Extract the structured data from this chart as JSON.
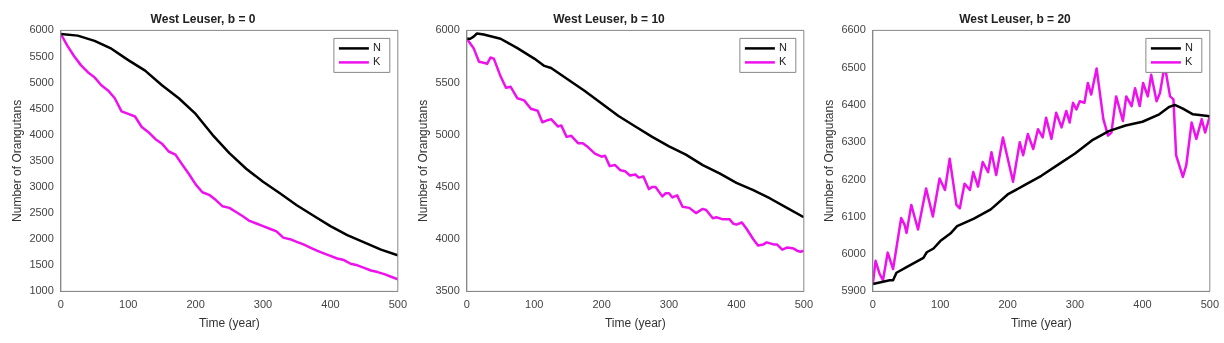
{
  "chart_data": [
    {
      "type": "line",
      "title": "West Leuser, b = 0",
      "xlabel": "Time (year)",
      "ylabel": "Number of Orangutans",
      "xlim": [
        0,
        500
      ],
      "xticks": [
        0,
        100,
        200,
        300,
        400,
        500
      ],
      "ylim": [
        1000,
        6000
      ],
      "yticks": [
        1000,
        1500,
        2000,
        2500,
        3000,
        3500,
        4000,
        4500,
        5000,
        5500,
        6000
      ],
      "grid": false,
      "legend": "top right",
      "series": [
        {
          "name": "N",
          "color": "#000000",
          "x": [
            0,
            25,
            50,
            75,
            100,
            125,
            150,
            175,
            200,
            225,
            250,
            275,
            300,
            325,
            350,
            375,
            400,
            425,
            450,
            475,
            500
          ],
          "values": [
            5930,
            5900,
            5800,
            5650,
            5430,
            5230,
            4950,
            4700,
            4400,
            4000,
            3650,
            3350,
            3100,
            2880,
            2650,
            2450,
            2250,
            2080,
            1940,
            1800,
            1690
          ]
        },
        {
          "name": "K",
          "color": "#ee11ee",
          "x": [
            0,
            10,
            20,
            30,
            40,
            50,
            60,
            70,
            80,
            90,
            100,
            110,
            120,
            130,
            140,
            150,
            160,
            170,
            180,
            190,
            200,
            210,
            220,
            230,
            240,
            250,
            260,
            270,
            280,
            290,
            300,
            310,
            320,
            330,
            340,
            350,
            360,
            370,
            380,
            390,
            400,
            410,
            420,
            430,
            440,
            450,
            460,
            470,
            480,
            490,
            500
          ],
          "values": [
            5930,
            5700,
            5500,
            5330,
            5200,
            5100,
            4950,
            4850,
            4700,
            4450,
            4400,
            4350,
            4150,
            4050,
            3920,
            3830,
            3680,
            3620,
            3430,
            3250,
            3050,
            2900,
            2850,
            2750,
            2630,
            2600,
            2520,
            2440,
            2350,
            2300,
            2250,
            2200,
            2150,
            2030,
            2000,
            1950,
            1900,
            1840,
            1780,
            1730,
            1680,
            1630,
            1600,
            1530,
            1500,
            1450,
            1400,
            1370,
            1330,
            1280,
            1230
          ]
        }
      ]
    },
    {
      "type": "line",
      "title": "West Leuser, b = 10",
      "xlabel": "Time (year)",
      "ylabel": "Number of Orangutans",
      "xlim": [
        0,
        500
      ],
      "xticks": [
        0,
        100,
        200,
        300,
        400,
        500
      ],
      "ylim": [
        3500,
        6000
      ],
      "yticks": [
        3500,
        4000,
        4500,
        5000,
        5500,
        6000
      ],
      "grid": false,
      "legend": "top right",
      "series": [
        {
          "name": "N",
          "color": "#000000",
          "x": [
            0,
            5,
            10,
            15,
            25,
            50,
            75,
            100,
            115,
            125,
            150,
            175,
            200,
            225,
            250,
            275,
            300,
            325,
            350,
            375,
            400,
            425,
            450,
            475,
            500
          ],
          "values": [
            5920,
            5920,
            5940,
            5970,
            5960,
            5920,
            5830,
            5730,
            5660,
            5640,
            5530,
            5420,
            5300,
            5180,
            5080,
            4980,
            4890,
            4810,
            4710,
            4630,
            4540,
            4470,
            4390,
            4300,
            4210
          ]
        },
        {
          "name": "K",
          "color": "#ee11ee",
          "x": [
            0,
            10,
            18,
            25,
            30,
            35,
            40,
            50,
            58,
            65,
            75,
            85,
            95,
            105,
            112,
            120,
            125,
            135,
            140,
            148,
            155,
            165,
            172,
            180,
            190,
            200,
            205,
            212,
            220,
            228,
            235,
            242,
            250,
            255,
            262,
            270,
            275,
            280,
            290,
            295,
            300,
            305,
            312,
            320,
            330,
            340,
            350,
            355,
            365,
            370,
            380,
            390,
            395,
            400,
            408,
            415,
            425,
            432,
            440,
            445,
            455,
            460,
            468,
            475,
            485,
            490,
            495,
            500
          ],
          "values": [
            5920,
            5830,
            5700,
            5690,
            5680,
            5740,
            5730,
            5560,
            5450,
            5460,
            5350,
            5330,
            5250,
            5230,
            5120,
            5140,
            5150,
            5080,
            5090,
            4980,
            4990,
            4920,
            4920,
            4880,
            4820,
            4790,
            4800,
            4700,
            4710,
            4660,
            4650,
            4610,
            4620,
            4590,
            4600,
            4480,
            4500,
            4500,
            4410,
            4440,
            4440,
            4400,
            4420,
            4310,
            4300,
            4250,
            4290,
            4280,
            4200,
            4210,
            4190,
            4190,
            4150,
            4140,
            4160,
            4100,
            4000,
            3940,
            3950,
            3970,
            3950,
            3950,
            3900,
            3920,
            3910,
            3890,
            3880,
            3890
          ]
        }
      ]
    },
    {
      "type": "line",
      "title": "West Leuser, b = 20",
      "xlabel": "Time (year)",
      "ylabel": "Number of Orangutans",
      "xlim": [
        0,
        500
      ],
      "xticks": [
        0,
        100,
        200,
        300,
        400,
        500
      ],
      "ylim": [
        5900,
        6600
      ],
      "yticks": [
        5900,
        6000,
        6100,
        6200,
        6300,
        6400,
        6500,
        6600
      ],
      "grid": false,
      "legend": "top right",
      "series": [
        {
          "name": "N",
          "color": "#000000",
          "x": [
            0,
            25,
            30,
            35,
            50,
            75,
            80,
            90,
            100,
            115,
            125,
            150,
            175,
            200,
            225,
            250,
            275,
            300,
            325,
            340,
            350,
            375,
            400,
            425,
            440,
            448,
            460,
            475,
            500
          ],
          "values": [
            5920,
            5930,
            5930,
            5950,
            5965,
            5990,
            6005,
            6015,
            6035,
            6055,
            6075,
            6095,
            6120,
            6160,
            6185,
            6210,
            6240,
            6270,
            6305,
            6320,
            6330,
            6345,
            6355,
            6375,
            6395,
            6400,
            6390,
            6375,
            6370
          ]
        },
        {
          "name": "K",
          "color": "#ee11ee",
          "x": [
            0,
            4,
            10,
            15,
            22,
            30,
            35,
            42,
            47,
            50,
            57,
            67,
            79,
            89,
            99,
            107,
            114,
            124,
            129,
            136,
            144,
            149,
            156,
            163,
            171,
            176,
            183,
            193,
            208,
            218,
            223,
            230,
            238,
            245,
            252,
            257,
            265,
            272,
            280,
            287,
            292,
            297,
            302,
            307,
            314,
            319,
            324,
            332,
            342,
            349,
            354,
            361,
            371,
            376,
            384,
            389,
            396,
            401,
            408,
            413,
            421,
            426,
            433,
            441,
            446,
            450,
            460,
            465,
            473,
            480,
            488,
            493,
            500
          ],
          "values": [
            5920,
            5982,
            5947,
            5930,
            6004,
            5960,
            6017,
            6097,
            6079,
            6057,
            6132,
            6066,
            6176,
            6101,
            6203,
            6172,
            6256,
            6132,
            6123,
            6189,
            6172,
            6220,
            6181,
            6247,
            6220,
            6273,
            6212,
            6313,
            6194,
            6300,
            6265,
            6322,
            6282,
            6335,
            6313,
            6366,
            6309,
            6379,
            6340,
            6384,
            6353,
            6406,
            6388,
            6410,
            6406,
            6459,
            6428,
            6498,
            6362,
            6318,
            6326,
            6423,
            6357,
            6423,
            6397,
            6445,
            6397,
            6459,
            6423,
            6481,
            6410,
            6432,
            6507,
            6423,
            6415,
            6265,
            6207,
            6238,
            6353,
            6309,
            6362,
            6326,
            6370
          ]
        }
      ]
    }
  ]
}
